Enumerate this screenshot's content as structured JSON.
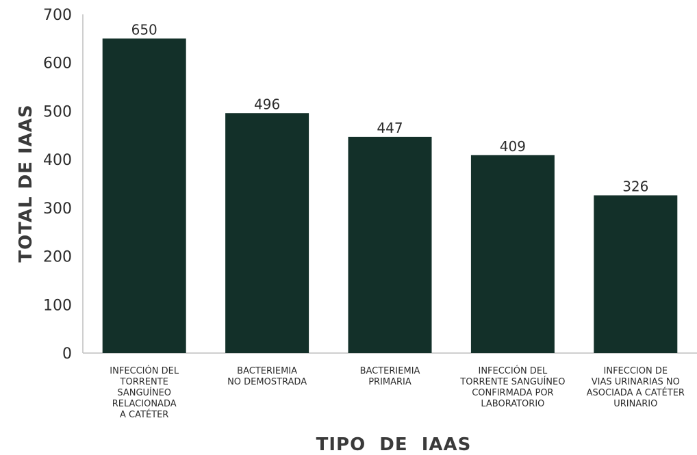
{
  "chart_data": {
    "type": "bar",
    "title": "",
    "xlabel": "TIPO  DE  IAAS",
    "ylabel": "TOTAL DE IAAS",
    "ylim": [
      0,
      700
    ],
    "yticks": [
      0,
      100,
      200,
      300,
      400,
      500,
      600,
      700
    ],
    "grid": false,
    "bar_color": "#133029",
    "categories": [
      "INFECCIÓN DEL\nTORRENTE\nSANGUÍNEO\nRELACIONADA\nA CATÉTER",
      "BACTERIEMIA\nNO DEMOSTRADA",
      "BACTERIEMIA\nPRIMARIA",
      "INFECCIÓN DEL\nTORRENTE SANGUÍNEO\nCONFIRMADA POR\nLABORATORIO",
      "INFECCION DE\nVIAS URINARIAS NO\nASOCIADA A CATÉTER\nURINARIO"
    ],
    "values": [
      650,
      496,
      447,
      409,
      326
    ]
  }
}
